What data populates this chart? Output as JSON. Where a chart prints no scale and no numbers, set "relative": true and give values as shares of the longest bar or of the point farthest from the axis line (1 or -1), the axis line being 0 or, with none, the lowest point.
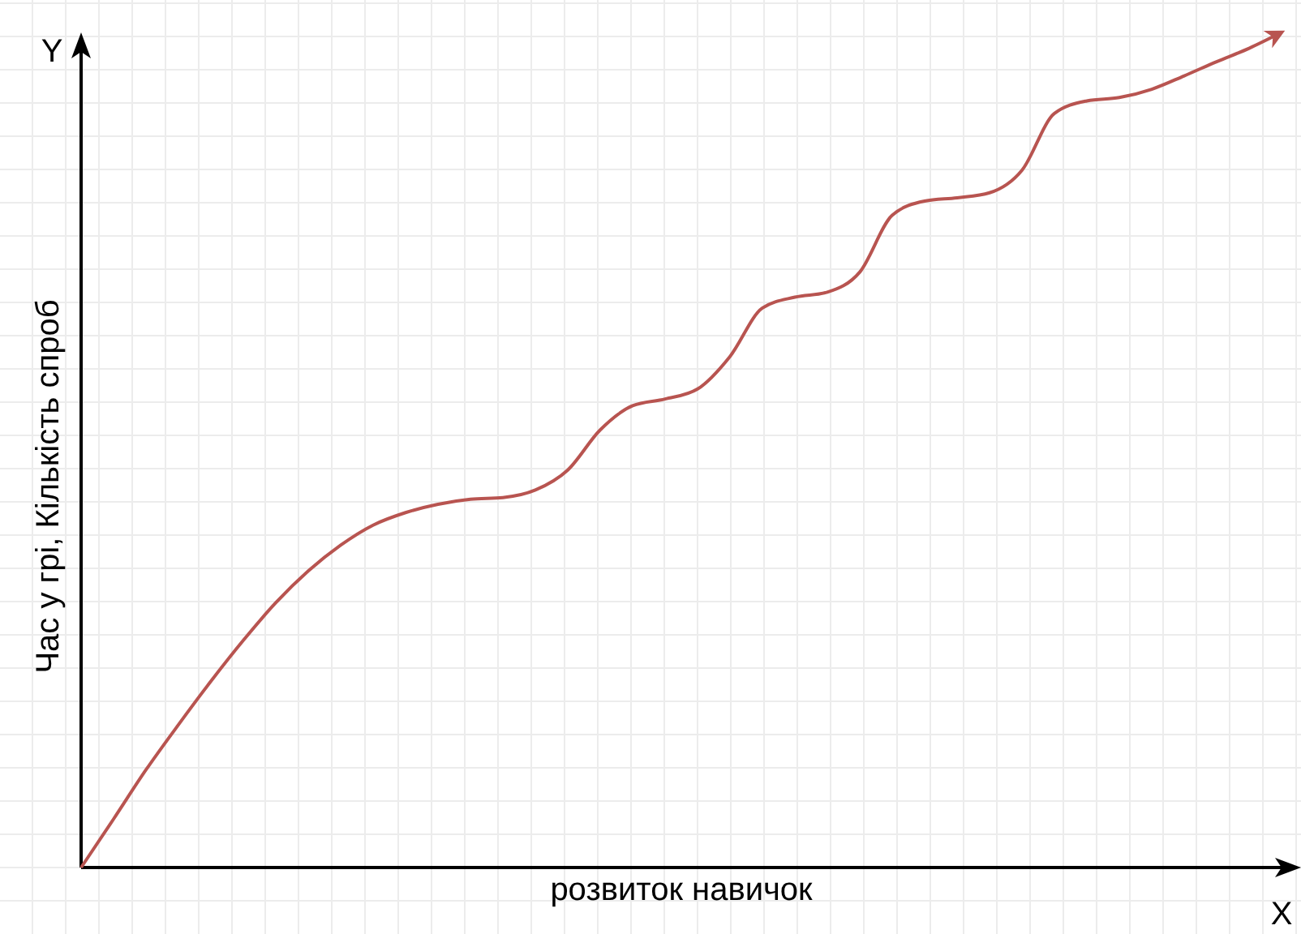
{
  "chart_data": {
    "type": "line",
    "relative": true,
    "xlabel": "розвиток навичок",
    "ylabel": "Час у грі, Кількість спроб",
    "annotations": [
      "Y",
      "X"
    ],
    "grid": true,
    "categories": [
      null,
      null,
      null,
      null,
      null,
      null,
      null,
      null,
      null,
      null,
      null,
      null,
      null,
      null,
      null,
      null,
      null,
      null,
      null,
      null,
      null,
      null,
      null,
      null,
      null,
      null,
      null,
      null,
      null,
      null,
      null,
      null,
      null,
      null,
      null,
      null,
      null,
      null
    ],
    "series": [
      {
        "color": "#b85450",
        "values": [
          0,
          0.058,
          0.117,
          0.171,
          0.223,
          0.272,
          0.317,
          0.355,
          0.386,
          0.41,
          0.425,
          0.435,
          0.441,
          0.443,
          0.452,
          0.476,
          0.524,
          0.553,
          0.561,
          0.573,
          0.612,
          0.67,
          0.683,
          0.689,
          0.713,
          0.781,
          0.798,
          0.802,
          0.808,
          0.835,
          0.903,
          0.918,
          0.922,
          0.932,
          0.948,
          0.965,
          0.981,
          1
        ]
      }
    ]
  }
}
